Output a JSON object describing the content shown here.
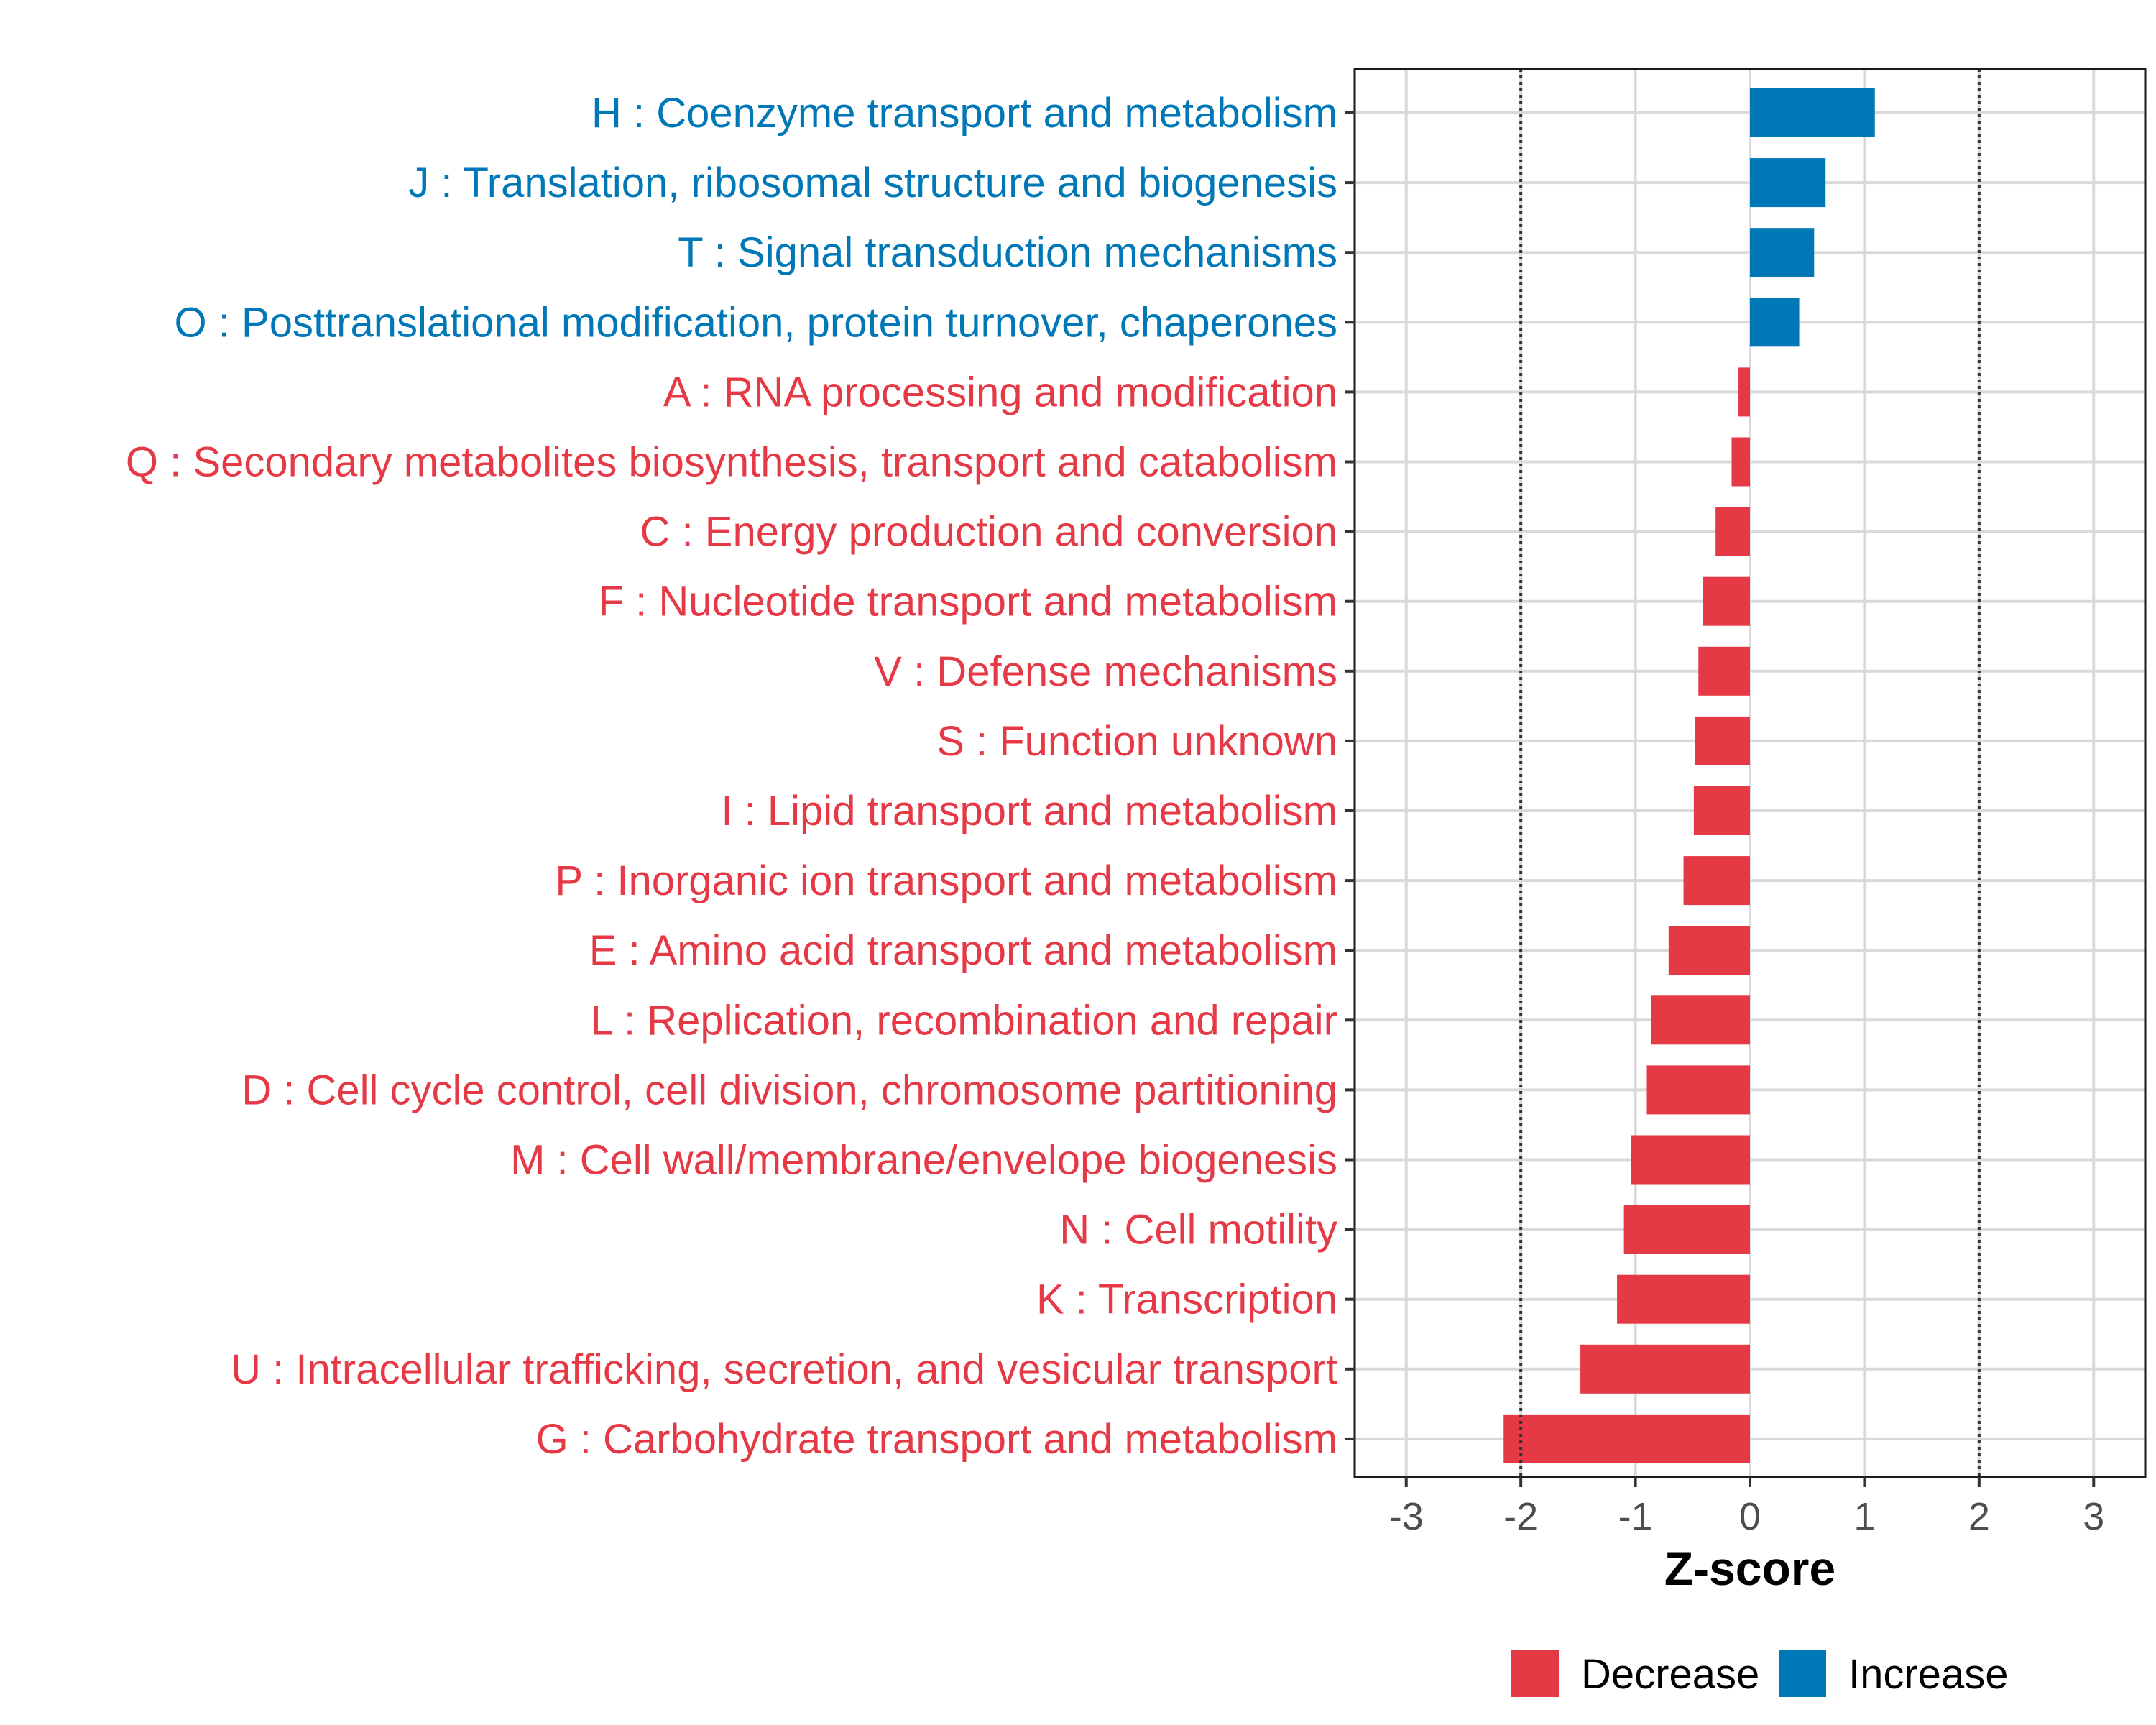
{
  "chart_data": {
    "type": "bar",
    "orientation": "horizontal",
    "title": "",
    "xlabel": "Z-score",
    "ylabel": "",
    "xlim": [
      -3.45,
      3.45
    ],
    "xticks": [
      -3,
      -2,
      -1,
      0,
      1,
      2,
      3
    ],
    "xtick_labels": [
      "-3",
      "-2",
      "-1",
      "0",
      "1",
      "2",
      "3"
    ],
    "reference_lines": [
      -2,
      2
    ],
    "grid": true,
    "legend_position": "bottom",
    "categories": [
      "H : Coenzyme transport and metabolism",
      "J : Translation, ribosomal structure and biogenesis",
      "T : Signal transduction mechanisms",
      "O : Posttranslational modification, protein turnover, chaperones",
      "A : RNA processing and modification",
      "Q : Secondary metabolites biosynthesis, transport and catabolism",
      "C : Energy production and conversion",
      "F : Nucleotide transport and metabolism",
      "V : Defense mechanisms",
      "S : Function unknown",
      "I : Lipid transport and metabolism",
      "P : Inorganic ion transport and metabolism",
      "E : Amino acid transport and metabolism",
      "L : Replication, recombination and repair",
      "D : Cell cycle control, cell division, chromosome partitioning",
      "M : Cell wall/membrane/envelope biogenesis",
      "N : Cell motility",
      "K : Transcription",
      "U : Intracellular trafficking, secretion, and vesicular transport",
      "G : Carbohydrate transport and metabolism"
    ],
    "values": [
      1.09,
      0.66,
      0.56,
      0.43,
      -0.1,
      -0.16,
      -0.3,
      -0.41,
      -0.45,
      -0.48,
      -0.49,
      -0.58,
      -0.71,
      -0.86,
      -0.9,
      -1.04,
      -1.1,
      -1.16,
      -1.48,
      -2.15
    ],
    "groups": [
      "Increase",
      "Increase",
      "Increase",
      "Increase",
      "Decrease",
      "Decrease",
      "Decrease",
      "Decrease",
      "Decrease",
      "Decrease",
      "Decrease",
      "Decrease",
      "Decrease",
      "Decrease",
      "Decrease",
      "Decrease",
      "Decrease",
      "Decrease",
      "Decrease",
      "Decrease"
    ],
    "legend": [
      {
        "name": "Decrease",
        "color": "#e63946"
      },
      {
        "name": "Increase",
        "color": "#0077b6"
      }
    ]
  }
}
